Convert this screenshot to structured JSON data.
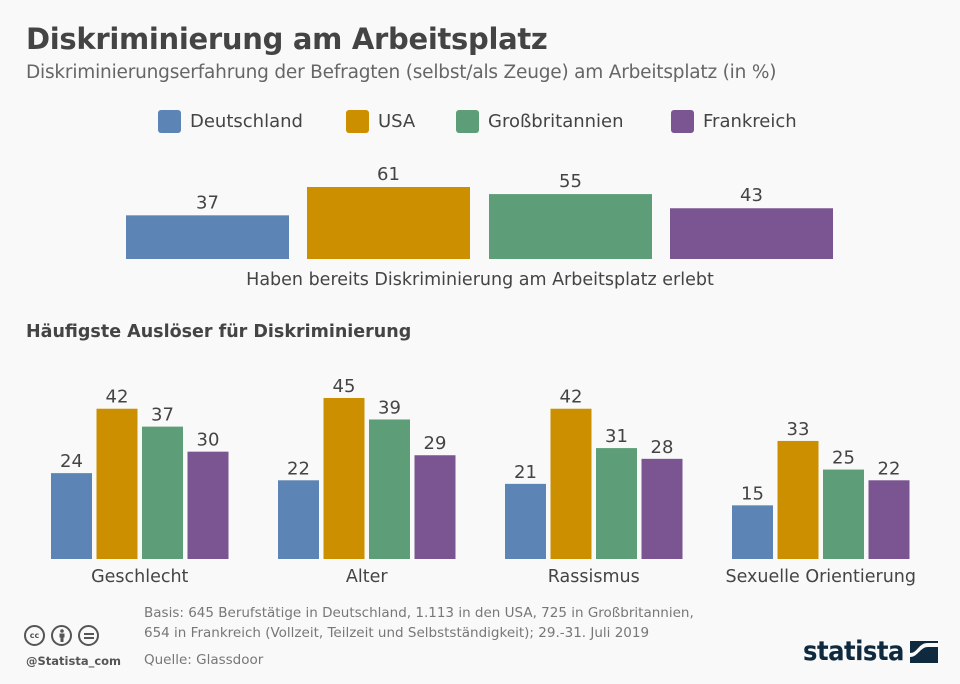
{
  "header": {
    "title": "Diskriminierung am Arbeitsplatz",
    "subtitle": "Diskriminierungserfahrung der Befragten (selbst/als Zeuge) am Arbeitsplatz (in %)"
  },
  "legend": [
    {
      "label": "Deutschland",
      "color": "#5c84b5"
    },
    {
      "label": "USA",
      "color": "#cc8f00"
    },
    {
      "label": "Großbritannien",
      "color": "#5d9e79"
    },
    {
      "label": "Frankreich",
      "color": "#7b5592"
    }
  ],
  "section_title": "Häufigste Auslöser für Diskriminierung",
  "chart_data": [
    {
      "type": "bar",
      "title": "Haben bereits Diskriminierung am Arbeitsplatz erlebt",
      "categories": [
        "Haben bereits Diskriminierung am Arbeitsplatz erlebt"
      ],
      "series": [
        {
          "name": "Deutschland",
          "values": [
            37
          ]
        },
        {
          "name": "USA",
          "values": [
            61
          ]
        },
        {
          "name": "Großbritannien",
          "values": [
            55
          ]
        },
        {
          "name": "Frankreich",
          "values": [
            43
          ]
        }
      ],
      "xlabel": "",
      "ylabel": "%",
      "ylim": [
        0,
        61
      ],
      "grid": false,
      "legend": "top-center"
    },
    {
      "type": "bar",
      "title": "Häufigste Auslöser für Diskriminierung",
      "categories": [
        "Geschlecht",
        "Alter",
        "Rassismus",
        "Sexuelle Orientierung"
      ],
      "series": [
        {
          "name": "Deutschland",
          "values": [
            24,
            22,
            21,
            15
          ]
        },
        {
          "name": "USA",
          "values": [
            42,
            45,
            42,
            33
          ]
        },
        {
          "name": "Großbritannien",
          "values": [
            37,
            39,
            31,
            25
          ]
        },
        {
          "name": "Frankreich",
          "values": [
            30,
            29,
            28,
            22
          ]
        }
      ],
      "xlabel": "",
      "ylabel": "%",
      "ylim": [
        0,
        45
      ],
      "grid": false,
      "legend": "top-center"
    }
  ],
  "footer": {
    "basis_line1": "Basis: 645 Berufstätige in Deutschland, 1.113 in den USA, 725 in Großbritannien,",
    "basis_line2": "654 in Frankreich (Vollzeit, Teilzeit und Selbstständigkeit); 29.-31. Juli 2019",
    "source": "Quelle: Glassdoor",
    "handle": "@Statista_com",
    "logo": "statista",
    "cc_icons": [
      "cc-icon",
      "by-icon",
      "nd-icon"
    ]
  }
}
